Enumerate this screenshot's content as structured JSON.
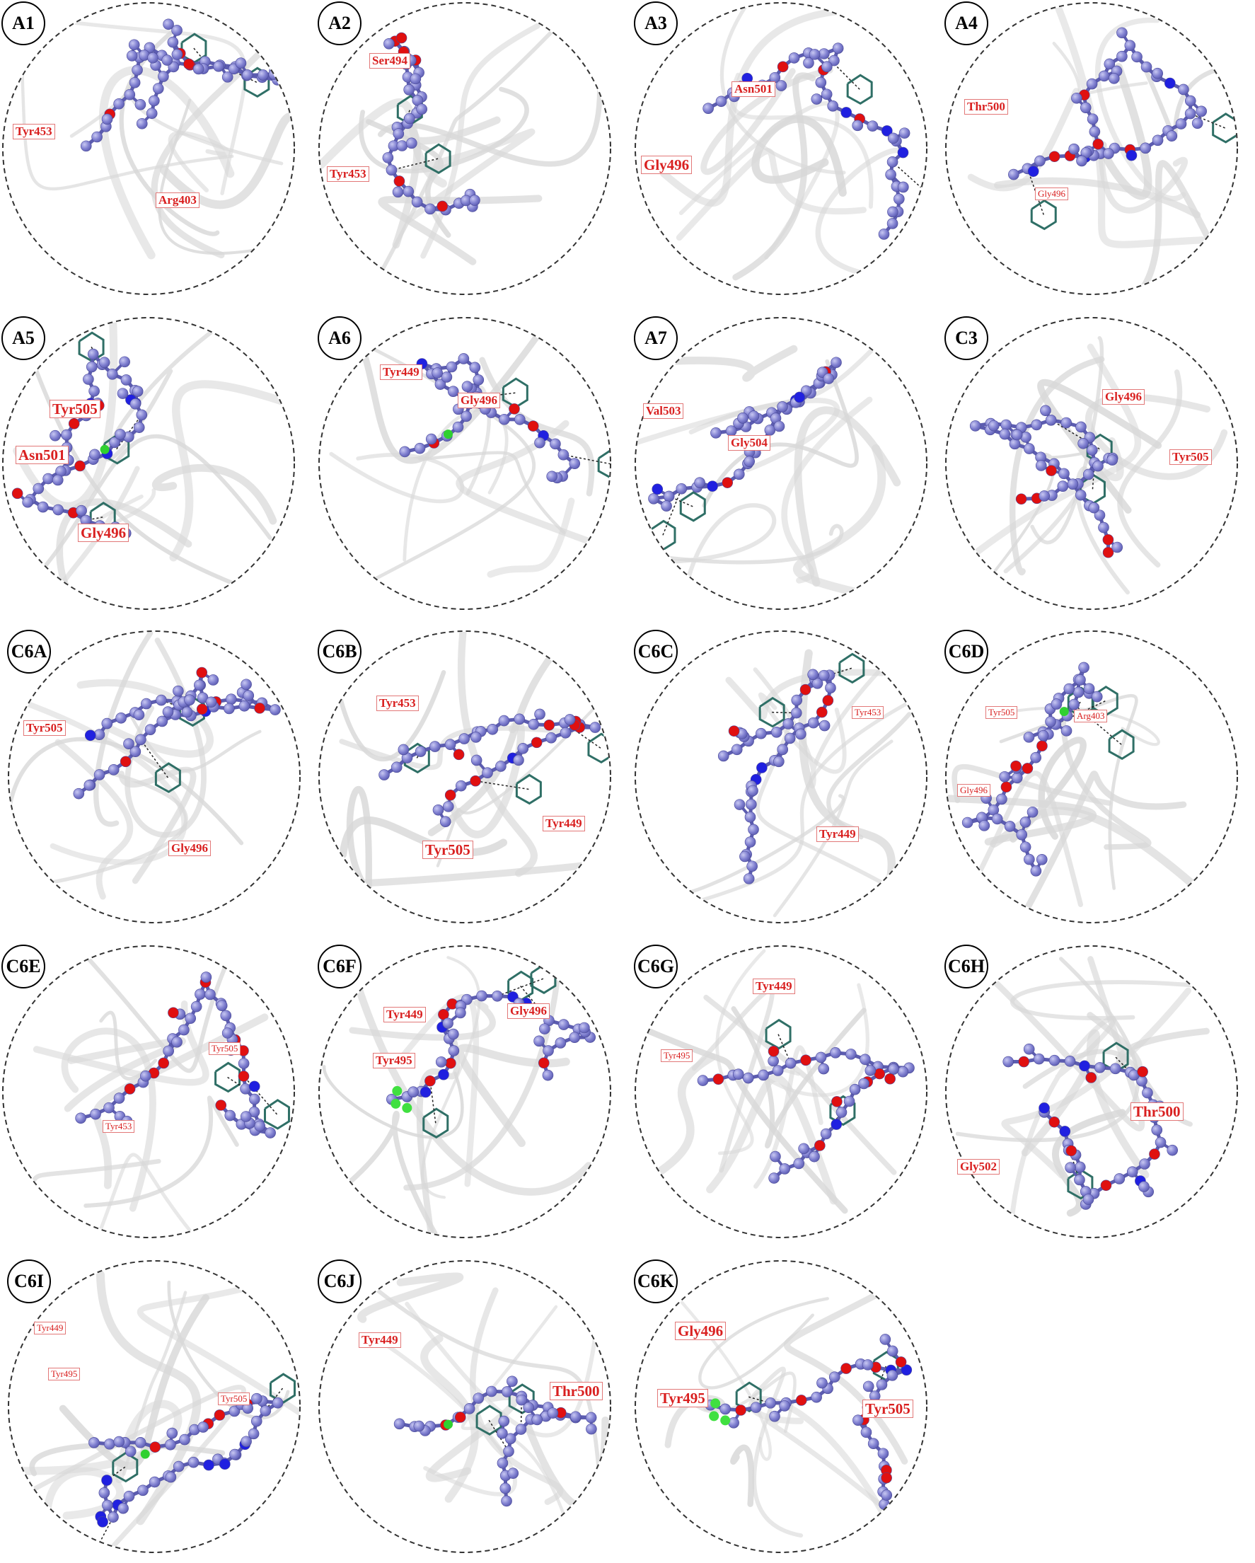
{
  "colors": {
    "ligand": "#7f7fd0",
    "ligand_dark": "#5c5cb0",
    "oxygen": "#e01010",
    "nitrogen": "#2020e0",
    "chlorine": "#30d030",
    "fluorine": "#40e040",
    "residue": "#2f6f66",
    "label_text": "#d92020",
    "protein": "#d8d8d8",
    "border": "#333333"
  },
  "panels": [
    {
      "id": "A1",
      "residues": [
        "Tyr453",
        "Arg403"
      ],
      "hetero": []
    },
    {
      "id": "A2",
      "residues": [
        "Ser494",
        "Tyr453"
      ],
      "hetero": []
    },
    {
      "id": "A3",
      "residues": [
        "Asn501",
        "Gly496"
      ],
      "hetero": [
        "nitrogen"
      ]
    },
    {
      "id": "A4",
      "residues": [
        "Thr500",
        "Gly496"
      ],
      "hetero": [
        "nitrogen"
      ]
    },
    {
      "id": "A5",
      "residues": [
        "Tyr505",
        "Asn501",
        "Gly496"
      ],
      "hetero": [
        "nitrogen",
        "chlorine"
      ]
    },
    {
      "id": "A6",
      "residues": [
        "Tyr449",
        "Gly496"
      ],
      "hetero": [
        "nitrogen",
        "chlorine"
      ]
    },
    {
      "id": "A7",
      "residues": [
        "Val503",
        "Gly504"
      ],
      "hetero": [
        "nitrogen"
      ]
    },
    {
      "id": "C3",
      "residues": [
        "Gly496",
        "Tyr505"
      ],
      "hetero": []
    },
    {
      "id": "C6A",
      "residues": [
        "Tyr505",
        "Gly496"
      ],
      "hetero": [
        "nitrogen"
      ]
    },
    {
      "id": "C6B",
      "residues": [
        "Tyr453",
        "Tyr449",
        "Tyr505"
      ],
      "hetero": [
        "nitrogen"
      ]
    },
    {
      "id": "C6C",
      "residues": [
        "Tyr453",
        "Tyr449"
      ],
      "hetero": [
        "nitrogen"
      ]
    },
    {
      "id": "C6D",
      "residues": [
        "Tyr505",
        "Arg403",
        "Gly496"
      ],
      "hetero": [
        "chlorine"
      ]
    },
    {
      "id": "C6E",
      "residues": [
        "Tyr505",
        "Tyr453"
      ],
      "hetero": [
        "nitrogen"
      ]
    },
    {
      "id": "C6F",
      "residues": [
        "Tyr449",
        "Gly496",
        "Tyr495"
      ],
      "hetero": [
        "nitrogen",
        "fluorine"
      ]
    },
    {
      "id": "C6G",
      "residues": [
        "Tyr449",
        "Tyr495"
      ],
      "hetero": [
        "nitrogen"
      ]
    },
    {
      "id": "C6H",
      "residues": [
        "Gly502",
        "Thr500"
      ],
      "hetero": [
        "nitrogen"
      ]
    },
    {
      "id": "C6I",
      "residues": [
        "Tyr449",
        "Tyr495",
        "Tyr505"
      ],
      "hetero": [
        "nitrogen",
        "chlorine"
      ]
    },
    {
      "id": "C6J",
      "residues": [
        "Tyr449",
        "Thr500"
      ],
      "hetero": [
        "nitrogen",
        "chlorine"
      ]
    },
    {
      "id": "C6K",
      "residues": [
        "Gly496",
        "Tyr495",
        "Tyr505"
      ],
      "hetero": [
        "nitrogen",
        "fluorine"
      ]
    }
  ]
}
